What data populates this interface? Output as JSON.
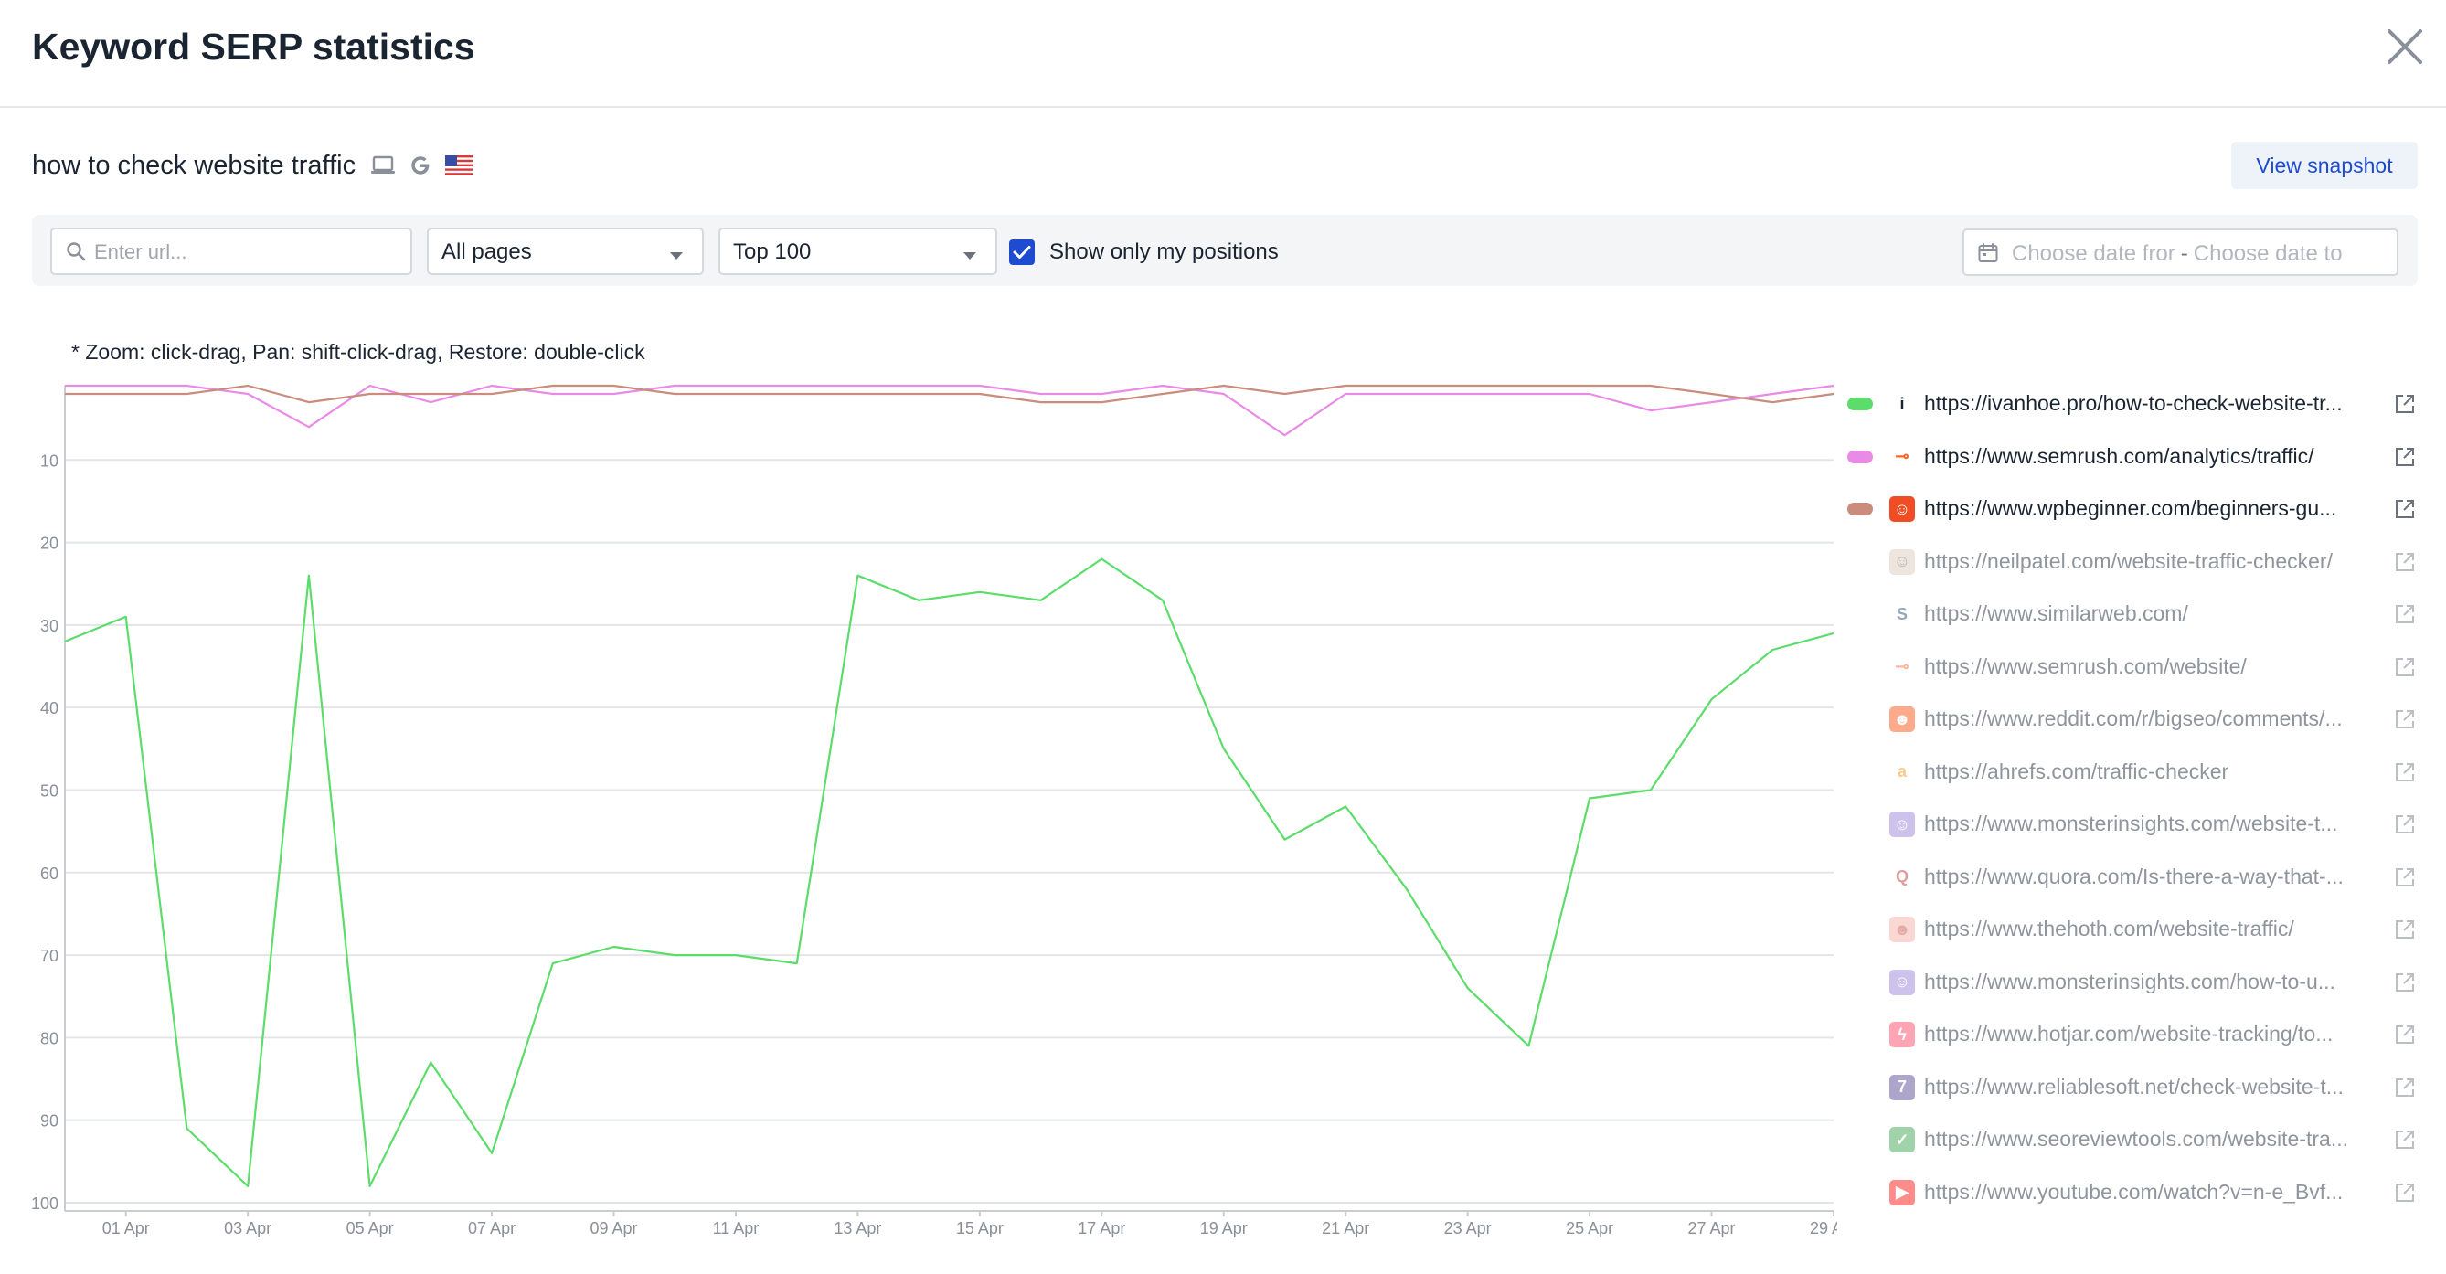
{
  "modal": {
    "title": "Keyword SERP statistics",
    "close_icon": "close-icon"
  },
  "keyword": {
    "text": "how to check website traffic",
    "device_icon": "laptop-icon",
    "engine_icon": "google-icon",
    "country_icon": "us-flag-icon"
  },
  "snapshot_button": {
    "label": "View snapshot"
  },
  "filters": {
    "url_placeholder": "Enter url...",
    "pages_select": "All pages",
    "top_select": "Top 100",
    "show_only_my_positions": {
      "label": "Show only my positions",
      "checked": true
    },
    "date_from_placeholder": "Choose date fror",
    "date_separator": "-",
    "date_to_placeholder": "Choose date to"
  },
  "zoom_hint": "* Zoom: click-drag, Pan: shift-click-drag, Restore: double-click",
  "colors": {
    "green": "#5cdc6a",
    "pink": "#e98be6",
    "brown": "#c98c7d",
    "grid": "#e3e5e8",
    "axis": "#c9ccd1",
    "accent": "#1f4bd1"
  },
  "chart_data": {
    "type": "line",
    "y_inverted": true,
    "ylim": [
      1,
      101
    ],
    "y_ticks": [
      10,
      20,
      30,
      40,
      50,
      60,
      70,
      80,
      90,
      100
    ],
    "x": [
      "31 Mar",
      "01 Apr",
      "02 Apr",
      "03 Apr",
      "04 Apr",
      "05 Apr",
      "06 Apr",
      "07 Apr",
      "08 Apr",
      "09 Apr",
      "10 Apr",
      "11 Apr",
      "12 Apr",
      "13 Apr",
      "14 Apr",
      "15 Apr",
      "16 Apr",
      "17 Apr",
      "18 Apr",
      "19 Apr",
      "20 Apr",
      "21 Apr",
      "22 Apr",
      "23 Apr",
      "24 Apr",
      "25 Apr",
      "26 Apr",
      "27 Apr",
      "28 Apr",
      "29 Apr"
    ],
    "x_tick_labels": [
      "01 Apr",
      "03 Apr",
      "05 Apr",
      "07 Apr",
      "09 Apr",
      "11 Apr",
      "13 Apr",
      "15 Apr",
      "17 Apr",
      "19 Apr",
      "21 Apr",
      "23 Apr",
      "25 Apr",
      "27 Apr",
      "29 Apr"
    ],
    "series": [
      {
        "url": "https://ivanhoe.pro/how-to-check-website-traffic",
        "color": "#5cdc6a",
        "values": [
          32,
          29,
          91,
          98,
          24,
          98,
          83,
          94,
          71,
          69,
          70,
          70,
          71,
          24,
          27,
          26,
          27,
          22,
          27,
          45,
          56,
          52,
          62,
          74,
          81,
          51,
          50,
          39,
          33,
          31
        ]
      },
      {
        "url": "https://www.semrush.com/analytics/traffic/",
        "color": "#e98be6",
        "values": [
          1,
          1,
          1,
          2,
          6,
          1,
          3,
          1,
          2,
          2,
          1,
          1,
          1,
          1,
          1,
          1,
          2,
          2,
          1,
          2,
          7,
          2,
          2,
          2,
          2,
          2,
          4,
          3,
          2,
          1
        ]
      },
      {
        "url": "https://www.wpbeginner.com/beginners-guide/how-to-check-website-traffic",
        "color": "#c98c7d",
        "values": [
          2,
          2,
          2,
          1,
          3,
          2,
          2,
          2,
          1,
          1,
          2,
          2,
          2,
          2,
          2,
          2,
          3,
          3,
          2,
          1,
          2,
          1,
          1,
          1,
          1,
          1,
          1,
          2,
          3,
          2
        ]
      }
    ]
  },
  "legend": [
    {
      "url": "https://ivanhoe.pro/how-to-check-website-tr...",
      "color": "#5cdc6a",
      "active": true,
      "favicon": "ivanhoe-icon",
      "fav_bg": "#ffffff",
      "fav_fg": "#1b2431",
      "fav_char": "i"
    },
    {
      "url": "https://www.semrush.com/analytics/traffic/",
      "color": "#e98be6",
      "active": true,
      "favicon": "semrush-icon",
      "fav_bg": "#ffffff",
      "fav_fg": "#ff642d",
      "fav_char": "⊸"
    },
    {
      "url": "https://www.wpbeginner.com/beginners-gu...",
      "color": "#c98c7d",
      "active": true,
      "favicon": "wpbeginner-icon",
      "fav_bg": "#f04d24",
      "fav_fg": "#ffffff",
      "fav_char": "☺"
    },
    {
      "url": "https://neilpatel.com/website-traffic-checker/",
      "color": "",
      "active": false,
      "favicon": "neilpatel-icon",
      "fav_bg": "#d9c7b8",
      "fav_fg": "#6d5b4c",
      "fav_char": "☺"
    },
    {
      "url": "https://www.similarweb.com/",
      "color": "",
      "active": false,
      "favicon": "similarweb-icon",
      "fav_bg": "#ffffff",
      "fav_fg": "#1a3d6d",
      "fav_char": "S"
    },
    {
      "url": "https://www.semrush.com/website/",
      "color": "",
      "active": false,
      "favicon": "semrush-icon",
      "fav_bg": "#ffffff",
      "fav_fg": "#ff642d",
      "fav_char": "⊸"
    },
    {
      "url": "https://www.reddit.com/r/bigseo/comments/...",
      "color": "",
      "active": false,
      "favicon": "reddit-icon",
      "fav_bg": "#ff4500",
      "fav_fg": "#ffffff",
      "fav_char": "☻"
    },
    {
      "url": "https://ahrefs.com/traffic-checker",
      "color": "",
      "active": false,
      "favicon": "ahrefs-icon",
      "fav_bg": "#ffffff",
      "fav_fg": "#ff8800",
      "fav_char": "a"
    },
    {
      "url": "https://www.monsterinsights.com/website-t...",
      "color": "",
      "active": false,
      "favicon": "monsterinsights-icon",
      "fav_bg": "#8f7ad6",
      "fav_fg": "#ffffff",
      "fav_char": "☺"
    },
    {
      "url": "https://www.quora.com/Is-there-a-way-that-...",
      "color": "",
      "active": false,
      "favicon": "quora-icon",
      "fav_bg": "#ffffff",
      "fav_fg": "#b92b27",
      "fav_char": "Q"
    },
    {
      "url": "https://www.thehoth.com/website-traffic/",
      "color": "",
      "active": false,
      "favicon": "thehoth-icon",
      "fav_bg": "#f6a8a0",
      "fav_fg": "#c2483b",
      "fav_char": "☻"
    },
    {
      "url": "https://www.monsterinsights.com/how-to-u...",
      "color": "",
      "active": false,
      "favicon": "monsterinsights-icon",
      "fav_bg": "#8f7ad6",
      "fav_fg": "#ffffff",
      "fav_char": "☺"
    },
    {
      "url": "https://www.hotjar.com/website-tracking/to...",
      "color": "",
      "active": false,
      "favicon": "hotjar-icon",
      "fav_bg": "#fd3a5c",
      "fav_fg": "#ffffff",
      "fav_char": "ϟ"
    },
    {
      "url": "https://www.reliablesoft.net/check-website-t...",
      "color": "",
      "active": false,
      "favicon": "reliablesoft-icon",
      "fav_bg": "#4b3a8c",
      "fav_fg": "#ffffff",
      "fav_char": "7"
    },
    {
      "url": "https://www.seoreviewtools.com/website-tra...",
      "color": "",
      "active": false,
      "favicon": "seoreviewtools-icon",
      "fav_bg": "#2ea043",
      "fav_fg": "#ffffff",
      "fav_char": "✓"
    },
    {
      "url": "https://www.youtube.com/watch?v=n-e_Bvf...",
      "color": "",
      "active": false,
      "favicon": "youtube-icon",
      "fav_bg": "#ff0000",
      "fav_fg": "#ffffff",
      "fav_char": "▶"
    }
  ]
}
